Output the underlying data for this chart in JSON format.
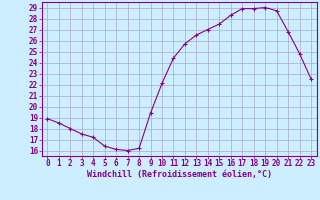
{
  "x": [
    0,
    1,
    2,
    3,
    4,
    5,
    6,
    7,
    8,
    9,
    10,
    11,
    12,
    13,
    14,
    15,
    16,
    17,
    18,
    19,
    20,
    21,
    22,
    23
  ],
  "y": [
    18.9,
    18.5,
    18.0,
    17.5,
    17.2,
    16.4,
    16.1,
    16.0,
    16.2,
    19.4,
    22.1,
    24.4,
    25.7,
    26.5,
    27.0,
    27.5,
    28.3,
    28.9,
    28.9,
    29.0,
    28.7,
    26.8,
    24.8,
    22.5
  ],
  "line_color": "#880088",
  "marker": "+",
  "bg_color": "#cceeff",
  "grid_color": "#aaaacc",
  "xlabel": "Windchill (Refroidissement éolien,°C)",
  "ylabel_ticks": [
    16,
    17,
    18,
    19,
    20,
    21,
    22,
    23,
    24,
    25,
    26,
    27,
    28,
    29
  ],
  "xlim": [
    -0.5,
    23.5
  ],
  "ylim": [
    15.5,
    29.5
  ],
  "tick_fontsize": 5.5,
  "xlabel_fontsize": 6.0
}
